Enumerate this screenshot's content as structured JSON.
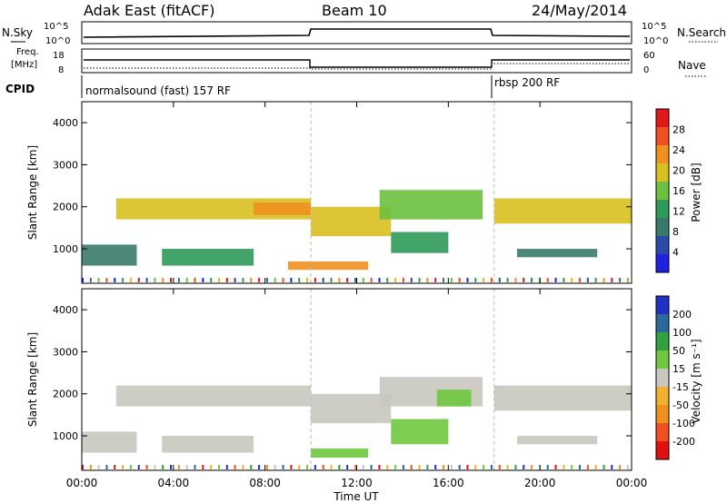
{
  "header": {
    "title": "Adak East (fitACF)",
    "beam": "Beam 10",
    "date": "24/May/2014"
  },
  "sky_panel": {
    "left_label": "N.Sky",
    "right_label": "N.Search",
    "left_ticks": [
      "10^5",
      "10^0"
    ],
    "right_ticks": [
      "10^5",
      "10^0"
    ]
  },
  "freq_panel": {
    "left_label_1": "Freq.",
    "left_label_2": "[MHz]",
    "left_ticks": [
      "18",
      "8"
    ],
    "right_label": "Nave",
    "right_ticks": [
      "60",
      "0"
    ]
  },
  "cpid_panel": {
    "label": "CPID",
    "segments": [
      "normalsound (fast) 157 RF",
      "rbsp 200 RF"
    ]
  },
  "chart_data": [
    {
      "type": "heatmap",
      "name": "power",
      "ylabel": "Slant Range [km]",
      "yticks": [
        "1000",
        "2000",
        "3000",
        "4000"
      ],
      "ylim": [
        180,
        4500
      ],
      "colorbar_label": "Power [dB]",
      "colorbar_ticks": [
        "28",
        "24",
        "20",
        "16",
        "12",
        "8",
        "4"
      ],
      "colors": [
        "#2020e0",
        "#2a4aa8",
        "#3a7a6a",
        "#2f9a5a",
        "#6cc040",
        "#d8c020",
        "#f09020",
        "#f05020",
        "#e01818"
      ],
      "bands": [
        {
          "t0": 0.0,
          "t1": 2.4,
          "r0": 600,
          "r1": 1100,
          "level": 2
        },
        {
          "t0": 3.5,
          "t1": 7.5,
          "r0": 600,
          "r1": 1000,
          "level": 3
        },
        {
          "t0": 1.5,
          "t1": 10.0,
          "r0": 1700,
          "r1": 2200,
          "level": 5
        },
        {
          "t0": 7.5,
          "t1": 10.0,
          "r0": 1800,
          "r1": 2100,
          "level": 6
        },
        {
          "t0": 10.0,
          "t1": 13.5,
          "r0": 1300,
          "r1": 2000,
          "level": 5
        },
        {
          "t0": 13.0,
          "t1": 17.5,
          "r0": 1700,
          "r1": 2400,
          "level": 4
        },
        {
          "t0": 13.5,
          "t1": 16.0,
          "r0": 900,
          "r1": 1400,
          "level": 3
        },
        {
          "t0": 18.0,
          "t1": 24.0,
          "r0": 1600,
          "r1": 2200,
          "level": 5
        },
        {
          "t0": 19.0,
          "t1": 22.5,
          "r0": 800,
          "r1": 1000,
          "level": 2
        },
        {
          "t0": 9.0,
          "t1": 12.5,
          "r0": 500,
          "r1": 700,
          "level": 6
        }
      ]
    },
    {
      "type": "heatmap",
      "name": "velocity",
      "ylabel": "Slant Range [km]",
      "yticks": [
        "1000",
        "2000",
        "3000",
        "4000"
      ],
      "ylim": [
        180,
        4500
      ],
      "colorbar_label": "Velocity [m s⁻¹]",
      "colorbar_ticks": [
        "200",
        "100",
        "50",
        "15",
        "-15",
        "-50",
        "-100",
        "-200"
      ],
      "colors": [
        "#e01010",
        "#f05020",
        "#f09020",
        "#f0b030",
        "#c8c8c0",
        "#70c840",
        "#30a040",
        "#2a6a9a",
        "#2030c0"
      ],
      "bands": [
        {
          "t0": 0.0,
          "t1": 2.4,
          "r0": 600,
          "r1": 1100,
          "level": 4
        },
        {
          "t0": 3.5,
          "t1": 7.5,
          "r0": 600,
          "r1": 1000,
          "level": 4
        },
        {
          "t0": 1.5,
          "t1": 10.0,
          "r0": 1700,
          "r1": 2200,
          "level": 4
        },
        {
          "t0": 10.0,
          "t1": 13.5,
          "r0": 1300,
          "r1": 2000,
          "level": 4
        },
        {
          "t0": 13.0,
          "t1": 17.5,
          "r0": 1700,
          "r1": 2400,
          "level": 4
        },
        {
          "t0": 13.5,
          "t1": 16.0,
          "r0": 800,
          "r1": 1400,
          "level": 5
        },
        {
          "t0": 15.5,
          "t1": 17.0,
          "r0": 1700,
          "r1": 2100,
          "level": 5
        },
        {
          "t0": 18.0,
          "t1": 24.0,
          "r0": 1600,
          "r1": 2200,
          "level": 4
        },
        {
          "t0": 19.0,
          "t1": 22.5,
          "r0": 800,
          "r1": 1000,
          "level": 4
        },
        {
          "t0": 10.0,
          "t1": 12.5,
          "r0": 480,
          "r1": 700,
          "level": 5
        }
      ]
    }
  ],
  "x_axis": {
    "label": "Time UT",
    "ticks": [
      "00:00",
      "04:00",
      "08:00",
      "12:00",
      "16:00",
      "20:00",
      "00:00"
    ]
  }
}
